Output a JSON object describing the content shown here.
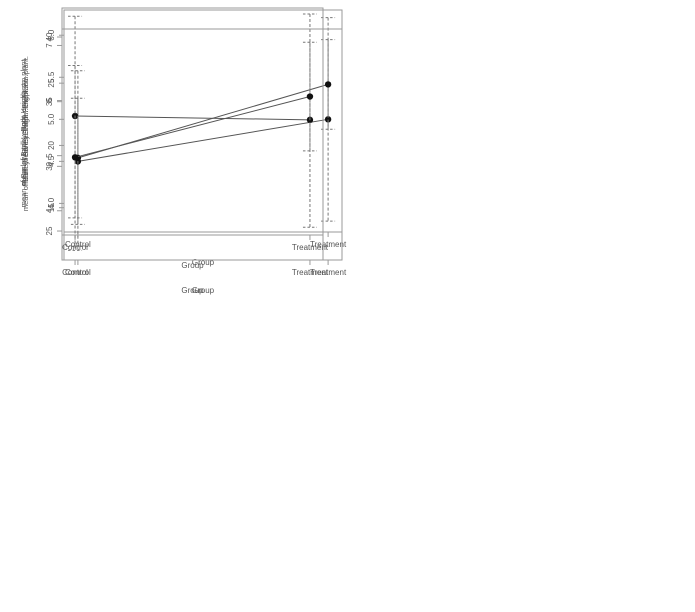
{
  "figure": {
    "background": "#ffffff",
    "axis_color": "#9a9a9a",
    "text_color": "#555555",
    "ci_color": "#777777",
    "mean_line_color": "#555555",
    "point_color": "#111111"
  },
  "chart_data": [
    {
      "type": "line",
      "title": "",
      "ylabel": "mean of Barley.Shoot.Height..cm.plant.",
      "xlabel": "Group",
      "categories": [
        "Control",
        "Treatment"
      ],
      "series": [
        {
          "name": "mean",
          "values": [
            4.5,
            5.0
          ]
        }
      ],
      "ci_low": [
        3.75,
        3.79
      ],
      "ci_high": [
        5.25,
        6.21
      ],
      "ytick_values": [
        4.0,
        4.5,
        5.0,
        5.5,
        6.0
      ],
      "ytick_labels": [
        "4.0",
        "4.5",
        "5.0",
        "5.5",
        "6.0"
      ],
      "ylim": [
        3.66,
        6.3
      ],
      "legend": "none",
      "grid": "off",
      "marker": "filled-circle",
      "ci_linestyle": "dashed"
    },
    {
      "type": "line",
      "title": "",
      "ylabel": "mean of Barley..Root.Height..cm.plant.",
      "xlabel": "Group",
      "categories": [
        "Control",
        "Treatment"
      ],
      "series": [
        {
          "name": "mean",
          "values": [
            5.72,
            5.65
          ]
        }
      ],
      "ci_low": [
        3.87,
        3.7
      ],
      "ci_high": [
        7.53,
        7.57
      ],
      "ytick_values": [
        4,
        5,
        6,
        7
      ],
      "ytick_labels": [
        "4",
        "5",
        "6",
        "7"
      ],
      "ylim": [
        3.56,
        7.68
      ],
      "legend": "none",
      "grid": "off",
      "marker": "filled-circle",
      "ci_linestyle": "dashed"
    },
    {
      "type": "line",
      "title": "",
      "ylabel": "mean of Barley.leaves.Length..cm.plant.",
      "xlabel": "Group",
      "categories": [
        "Control",
        "Treatment"
      ],
      "series": [
        {
          "name": "mean",
          "values": [
            19.0,
            24.9
          ]
        }
      ],
      "ci_low": [
        11.9,
        21.3
      ],
      "ci_high": [
        26.0,
        28.5
      ],
      "ytick_values": [
        15,
        20,
        25
      ],
      "ytick_labels": [
        "15",
        "20",
        "25"
      ],
      "ylim": [
        10.8,
        29.35
      ],
      "legend": "none",
      "grid": "off",
      "marker": "filled-circle",
      "ci_linestyle": "dashed"
    },
    {
      "type": "line",
      "title": "",
      "ylabel": "mean of Barley.total.Length..cm.plant.",
      "xlabel": "Group",
      "categories": [
        "Control",
        "Treatment"
      ],
      "series": [
        {
          "name": "mean",
          "values": [
            30.7,
            35.4
          ]
        }
      ],
      "ci_low": [
        23.5,
        31.2
      ],
      "ci_high": [
        37.8,
        39.6
      ],
      "ytick_values": [
        25,
        30,
        35,
        40
      ],
      "ytick_labels": [
        "25",
        "30",
        "35",
        "40"
      ],
      "ylim": [
        22.76,
        40.62
      ],
      "legend": "none",
      "grid": "off",
      "marker": "filled-circle",
      "ci_linestyle": "dashed"
    }
  ]
}
